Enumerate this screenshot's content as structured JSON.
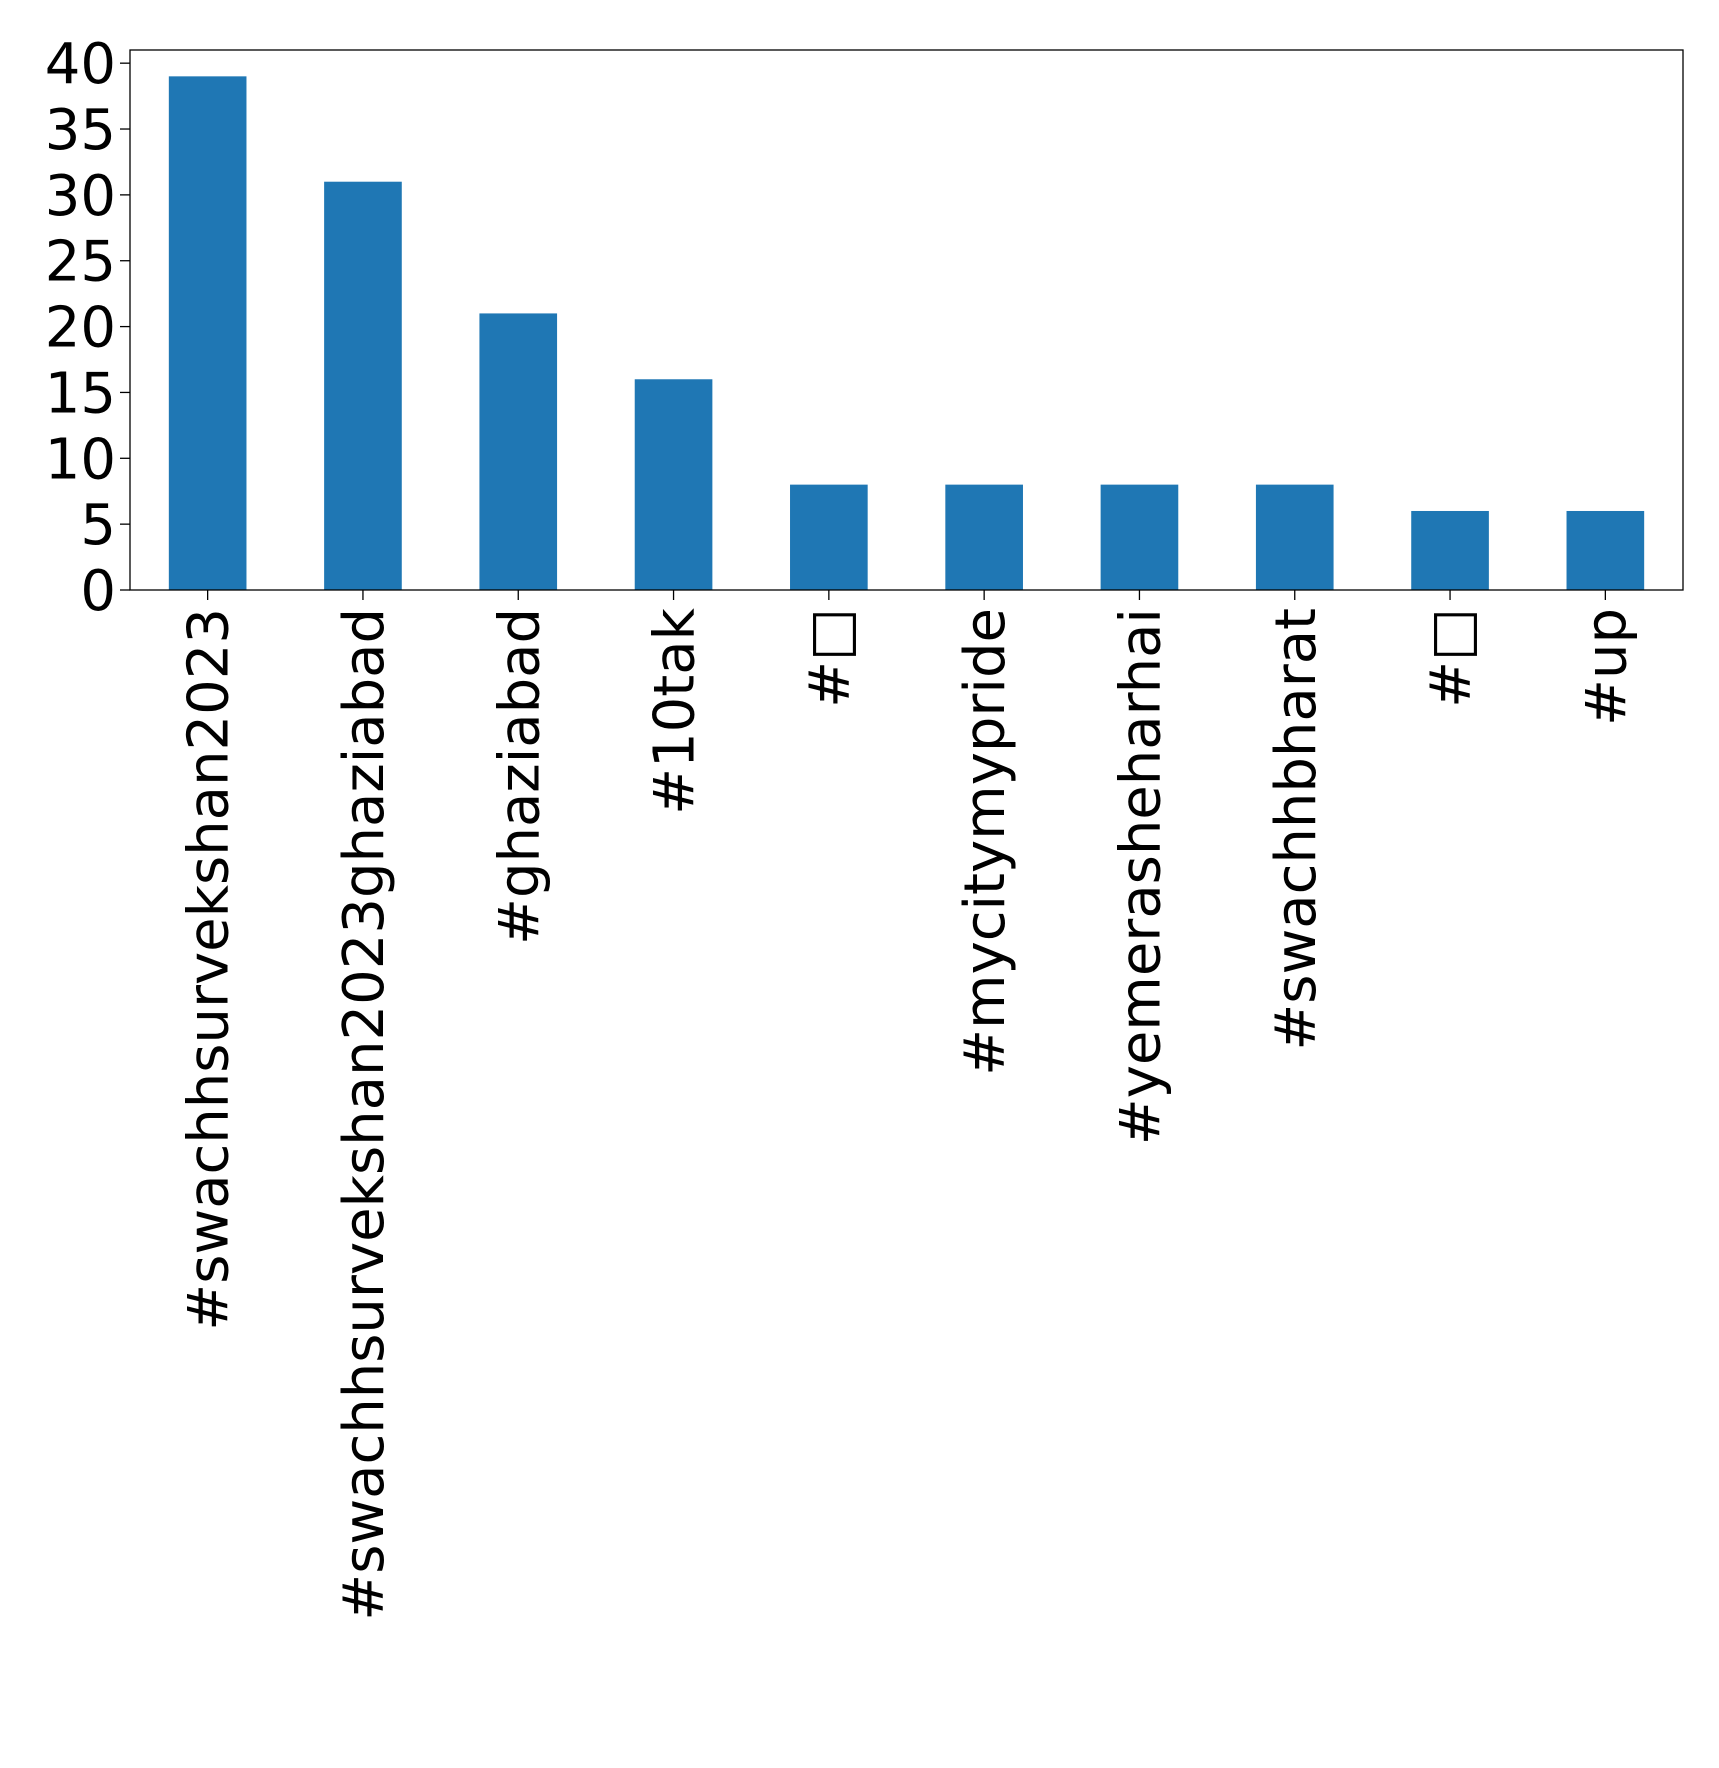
{
  "chart_data": {
    "type": "bar",
    "title": "",
    "xlabel": "",
    "ylabel": "",
    "categories": [
      "#swachhsurvekshan2023",
      "#swachhsurvekshan2023ghaziabad",
      "#ghaziabad",
      "#10tak",
      "#□",
      "#mycitymypride",
      "#yemerasheharhai",
      "#swachhbharat",
      "#□",
      "#up"
    ],
    "values": [
      39,
      31,
      21,
      16,
      8,
      8,
      8,
      8,
      6,
      6
    ],
    "ylim": [
      0,
      41
    ],
    "yticks": [
      "0",
      "5",
      "10",
      "15",
      "20",
      "25",
      "30",
      "35",
      "40"
    ],
    "grid": false,
    "legend": "none",
    "colors": {
      "bar": "#1f77b4",
      "axis": "#000000",
      "background": "#ffffff"
    }
  }
}
